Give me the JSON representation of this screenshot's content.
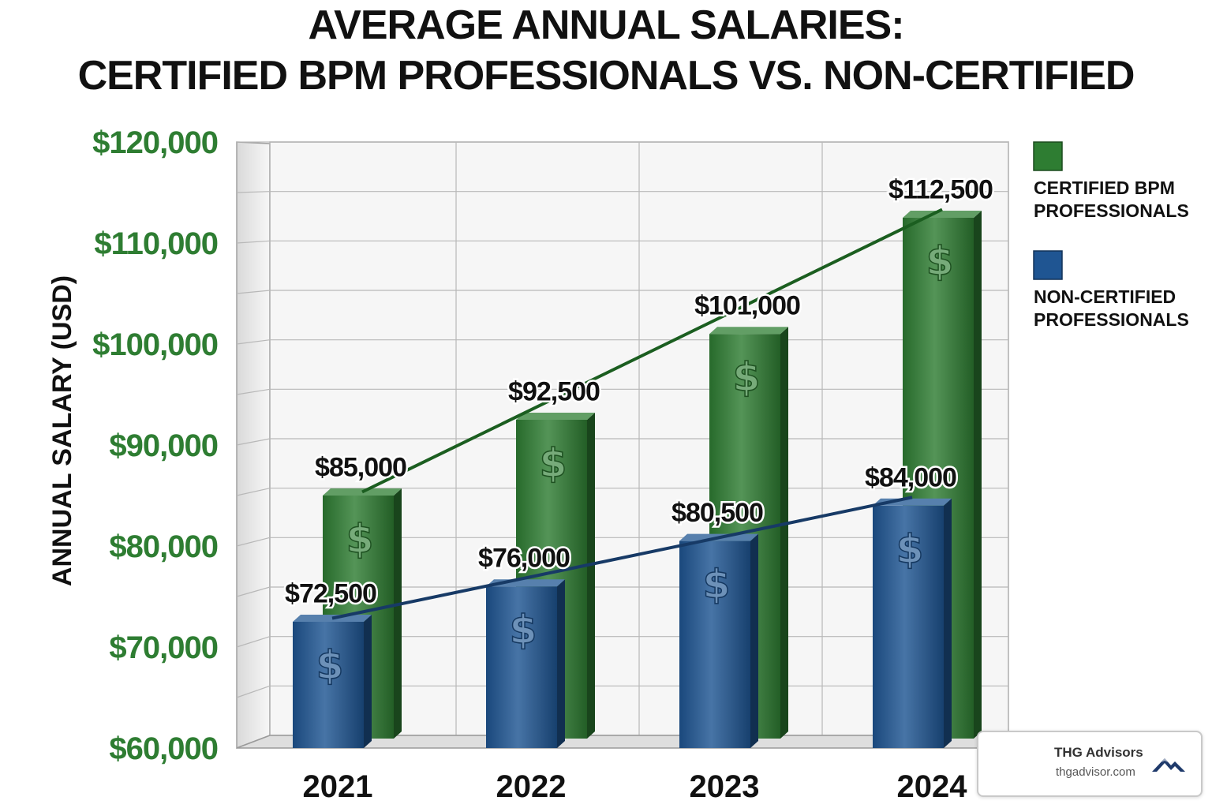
{
  "chart_data": {
    "type": "bar",
    "title": "AVERAGE ANNUAL SALARIES:",
    "subtitle": "CERTIFIED BPM PROFESSIONALS VS. NON-CERTIFIED",
    "ylabel": "ANNUAL SALARY (USD)",
    "xlabel": "",
    "categories": [
      "2021",
      "2022",
      "2023",
      "2024"
    ],
    "ylim": [
      60000,
      120000
    ],
    "yticks": [
      60000,
      70000,
      80000,
      90000,
      100000,
      110000,
      120000
    ],
    "ytick_labels": [
      "$60,000",
      "$70,000",
      "$80,000",
      "$90,000",
      "$100,000",
      "$110,000",
      "$120,000"
    ],
    "grid": true,
    "legend_position": "top-right",
    "series": [
      {
        "name": "CERTIFIED BPM PROFESSIONALS",
        "legend_lines": [
          "CERTIFIED BPM",
          "PROFESSIONALS"
        ],
        "color": "#2e7d32",
        "values": [
          85000,
          92500,
          101000,
          112500
        ],
        "value_labels": [
          "$85,000",
          "$92,500",
          "$101,000",
          "$112,500"
        ],
        "trend_line": true
      },
      {
        "name": "NON-CERTIFIED PROFESSIONALS",
        "legend_lines": [
          "NON-CERTIFIED",
          "PROFESSIONALS"
        ],
        "color": "#1f5592",
        "values": [
          72500,
          76000,
          80500,
          84000
        ],
        "value_labels": [
          "$72,500",
          "$76,000",
          "$80,500",
          "$84,000"
        ],
        "trend_line": true
      }
    ],
    "bar_icon": "dollar-sign-icon",
    "tick_color": "#2e7d32"
  },
  "branding": {
    "name": "THG Advisors",
    "url": "thgadvisor.com",
    "icon": "mountain-logo-icon",
    "icon_color": "#1f3a6b"
  }
}
